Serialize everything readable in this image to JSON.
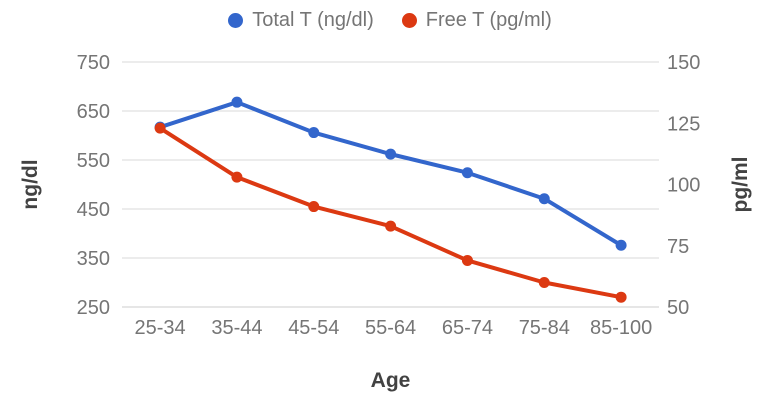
{
  "chart_data": {
    "type": "line",
    "title": "",
    "xlabel": "Age",
    "ylabel_left": "ng/dl",
    "ylabel_right": "pg/ml",
    "categories": [
      "25-34",
      "35-44",
      "45-54",
      "55-64",
      "65-74",
      "75-84",
      "85-100"
    ],
    "series": [
      {
        "name": "Total T (ng/dl)",
        "axis": "left",
        "color": "#3366CC",
        "values": [
          617,
          668,
          606,
          562,
          524,
          471,
          376
        ]
      },
      {
        "name": "Free T (pg/ml)",
        "axis": "right",
        "color": "#DC3912",
        "values": [
          123,
          103,
          91,
          83,
          69,
          60,
          54
        ]
      }
    ],
    "y_left": {
      "min": 250,
      "max": 750,
      "ticks": [
        750,
        650,
        550,
        450,
        350,
        250
      ]
    },
    "y_right": {
      "min": 50,
      "max": 150,
      "ticks": [
        150,
        125,
        100,
        75,
        50
      ]
    },
    "grid": true,
    "legend_position": "top",
    "styles": {
      "background": "#FFFFFF",
      "tick_label_color": "#757575",
      "axis_title_color": "#424242",
      "gridline_color": "#DADADA",
      "baseline_color": "#CCCCCC",
      "legend_text_color": "#757575"
    }
  }
}
